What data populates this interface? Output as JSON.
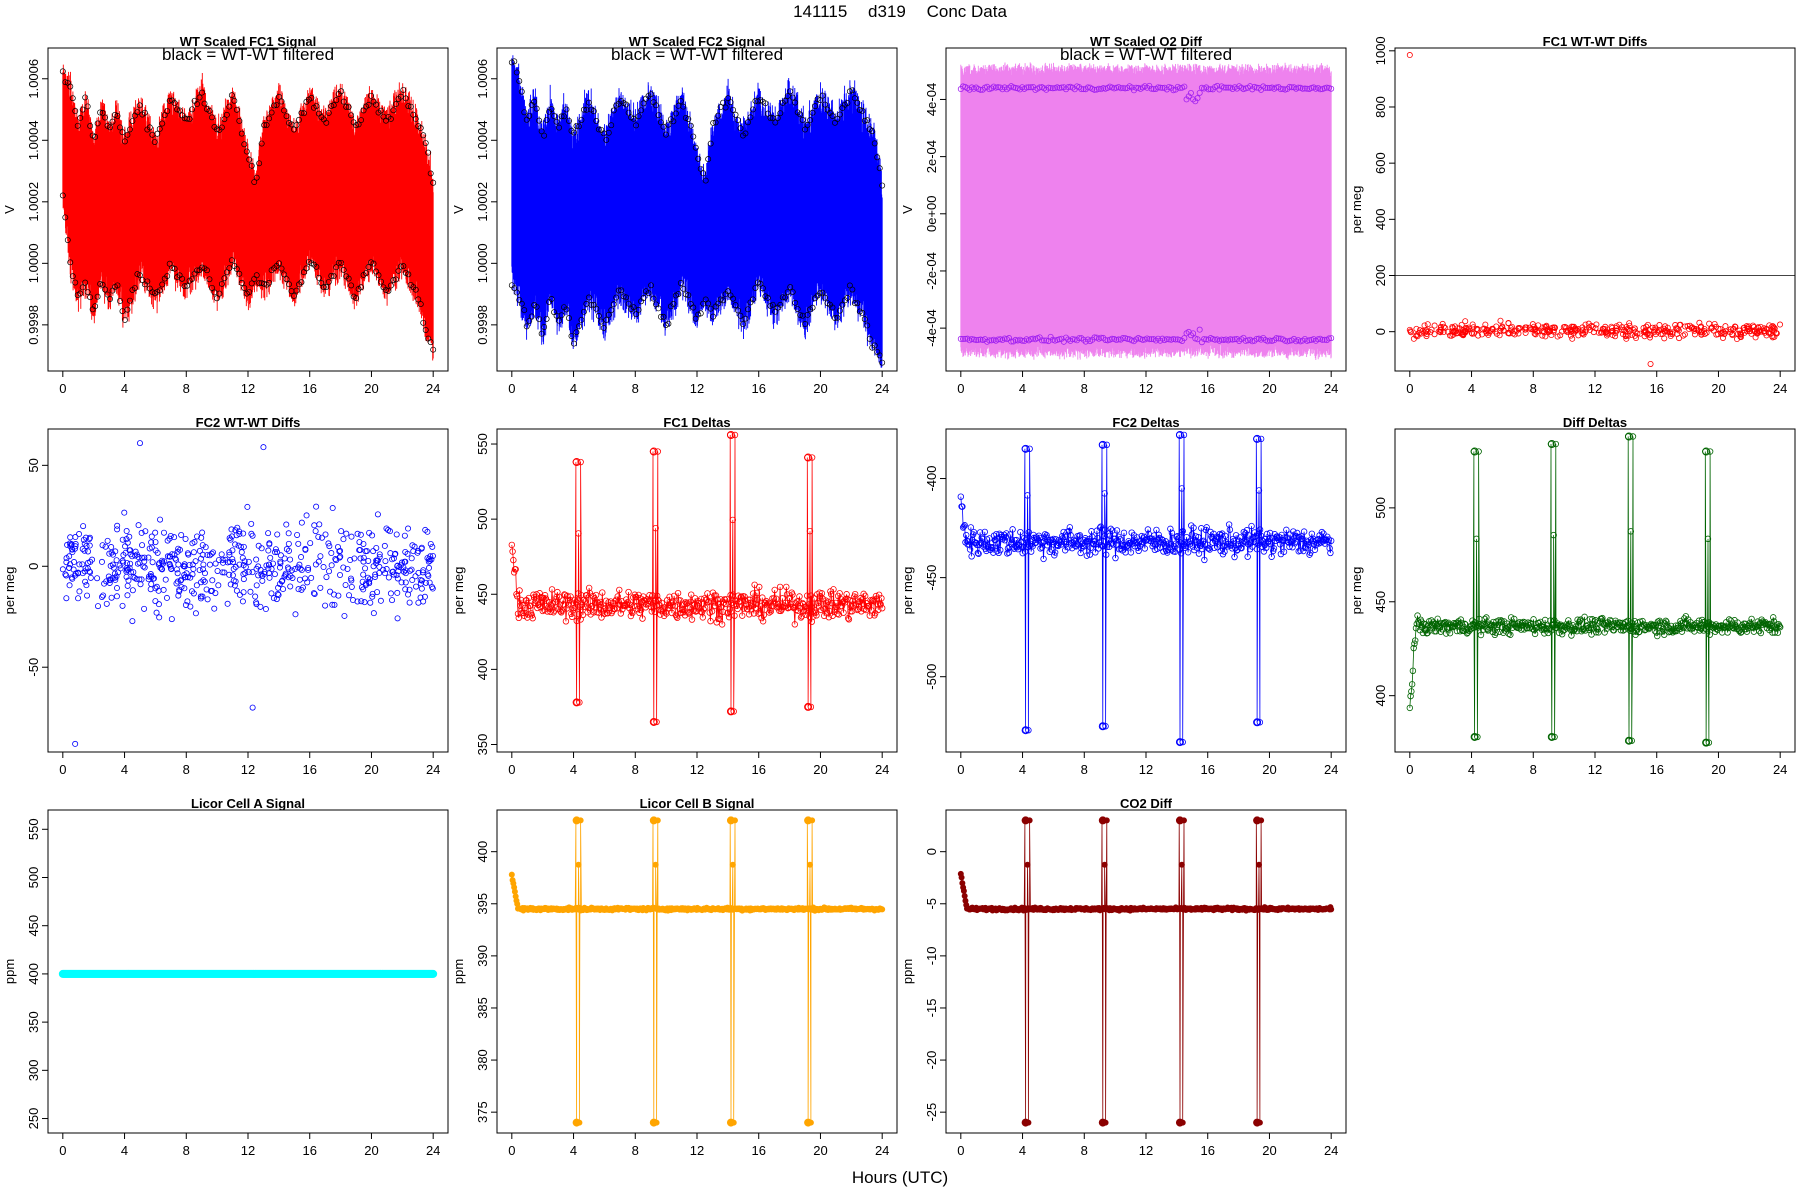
{
  "title_parts": [
    "141115",
    "d319",
    "Conc Data"
  ],
  "xlabel": "Hours (UTC)",
  "chart_data": [
    {
      "id": "fc1-signal",
      "type": "line",
      "title": "WT Scaled FC1 Signal",
      "subtitle": "black = WT-WT filtered",
      "ylabel": "V",
      "xlim": [
        0,
        24
      ],
      "ylim": [
        0.99965,
        1.0007
      ],
      "yticks": [
        0.9998,
        1.0,
        1.0002,
        1.0004,
        1.0006
      ],
      "ytick_labels": [
        "0.9998",
        "1.0000",
        "1.0002",
        "1.0004",
        "1.0006"
      ],
      "xticks": [
        0,
        4,
        8,
        12,
        16,
        20,
        24
      ],
      "color": "#ff0000",
      "overlay_color": "#000000",
      "series": [
        {
          "name": "upper envelope",
          "x": [
            0,
            0.5,
            1,
            1.5,
            2,
            2.5,
            3,
            3.5,
            4,
            5,
            6,
            7,
            8,
            9,
            10,
            11,
            12,
            12.5,
            13,
            14,
            15,
            16,
            17,
            18,
            19,
            20,
            21,
            22,
            23,
            23.5,
            24
          ],
          "values": [
            1.00066,
            1.00061,
            1.00048,
            1.00058,
            1.00043,
            1.00055,
            1.00047,
            1.00053,
            1.00044,
            1.00056,
            1.00043,
            1.00058,
            1.0005,
            1.0006,
            1.00046,
            1.00058,
            1.0004,
            1.0003,
            1.00048,
            1.00058,
            1.00046,
            1.00058,
            1.0005,
            1.0006,
            1.00048,
            1.00058,
            1.0005,
            1.0006,
            1.0005,
            1.00044,
            1.0003
          ]
        },
        {
          "name": "lower envelope",
          "x": [
            0,
            0.5,
            1,
            1.5,
            2,
            2.5,
            3,
            3.5,
            4,
            5,
            6,
            7,
            8,
            9,
            10,
            11,
            12,
            12.5,
            13,
            14,
            15,
            16,
            17,
            18,
            19,
            20,
            21,
            22,
            23,
            23.5,
            24
          ],
          "values": [
            1.00018,
            0.99995,
            0.99985,
            0.9999,
            0.9998,
            0.99992,
            0.99984,
            0.9999,
            0.99978,
            0.99993,
            0.99985,
            0.99995,
            0.99988,
            0.99996,
            0.99985,
            0.99998,
            0.99985,
            0.99992,
            0.99988,
            0.99996,
            0.99985,
            0.99998,
            0.99988,
            0.99996,
            0.99985,
            0.99997,
            0.99987,
            0.99996,
            0.99985,
            0.99975,
            0.99968
          ]
        }
      ]
    },
    {
      "id": "fc2-signal",
      "type": "line",
      "title": "WT Scaled FC2 Signal",
      "subtitle": "black = WT-WT filtered",
      "ylabel": "V",
      "xlim": [
        0,
        24
      ],
      "ylim": [
        0.99965,
        1.0007
      ],
      "yticks": [
        0.9998,
        1.0,
        1.0002,
        1.0004,
        1.0006
      ],
      "ytick_labels": [
        "0.9998",
        "1.0000",
        "1.0002",
        "1.0004",
        "1.0006"
      ],
      "xticks": [
        0,
        4,
        8,
        12,
        16,
        20,
        24
      ],
      "color": "#0000ff",
      "overlay_color": "#000000",
      "series": [
        {
          "name": "upper envelope",
          "x": [
            0,
            0.5,
            1,
            1.5,
            2,
            2.5,
            3,
            3.5,
            4,
            5,
            6,
            7,
            8,
            9,
            10,
            11,
            12,
            12.5,
            13,
            14,
            15,
            16,
            17,
            18,
            19,
            20,
            21,
            22,
            23,
            23.5,
            24
          ],
          "values": [
            1.0007,
            1.00064,
            1.0005,
            1.00058,
            1.00045,
            1.00056,
            1.00048,
            1.00054,
            1.00045,
            1.00057,
            1.00044,
            1.00058,
            1.0005,
            1.0006,
            1.00046,
            1.00058,
            1.0004,
            1.0003,
            1.00048,
            1.00058,
            1.00046,
            1.00058,
            1.0005,
            1.0006,
            1.00048,
            1.00058,
            1.0005,
            1.0006,
            1.0005,
            1.00044,
            1.0003
          ]
        },
        {
          "name": "lower envelope",
          "x": [
            0,
            0.5,
            1,
            1.5,
            2,
            2.5,
            3,
            3.5,
            4,
            5,
            6,
            7,
            8,
            9,
            10,
            11,
            12,
            12.5,
            13,
            14,
            15,
            16,
            17,
            18,
            19,
            20,
            21,
            22,
            23,
            23.5,
            24
          ],
          "values": [
            0.9999,
            0.99985,
            0.99975,
            0.99983,
            0.99972,
            0.99985,
            0.99976,
            0.99983,
            0.9997,
            0.99985,
            0.99976,
            0.99987,
            0.9998,
            0.99988,
            0.99976,
            0.9999,
            0.99978,
            0.99985,
            0.9998,
            0.99988,
            0.99976,
            0.9999,
            0.9998,
            0.99988,
            0.99976,
            0.99988,
            0.99978,
            0.99988,
            0.99976,
            0.99968,
            0.99965
          ]
        }
      ]
    },
    {
      "id": "o2-diff",
      "type": "area",
      "title": "WT Scaled O2 Diff",
      "subtitle": "black = WT-WT filtered",
      "ylabel": "V",
      "xlim": [
        0,
        24
      ],
      "ylim": [
        -0.00055,
        0.00058
      ],
      "yticks": [
        -0.0004,
        -0.0002,
        0,
        0.0002,
        0.0004
      ],
      "ytick_labels": [
        "-4e-04",
        "-2e-04",
        "0e+00",
        "2e-04",
        "4e-04"
      ],
      "xticks": [
        0,
        4,
        8,
        12,
        16,
        20,
        24
      ],
      "color": "#ee82ee",
      "overlay_color": "#a020f0",
      "band": {
        "top": 0.00052,
        "bottom": -0.0005
      },
      "upper_level": 0.00044,
      "lower_level": -0.00044
    },
    {
      "id": "fc1-wtwt",
      "type": "scatter",
      "title": "FC1 WT-WT Diffs",
      "ylabel": "per meg",
      "xlim": [
        0,
        24
      ],
      "ylim": [
        -140,
        1010
      ],
      "yticks": [
        0,
        200,
        400,
        600,
        800,
        1000
      ],
      "ytick_labels": [
        "0",
        "200",
        "400",
        "600",
        "800",
        "1000"
      ],
      "xticks": [
        0,
        4,
        8,
        12,
        16,
        20,
        24
      ],
      "color": "#ff0000",
      "hline": 200,
      "outliers": [
        {
          "x": 0,
          "y": 985
        },
        {
          "x": 15.6,
          "y": -115
        }
      ],
      "typical_range": [
        -50,
        60
      ]
    },
    {
      "id": "fc2-wtwt",
      "type": "scatter",
      "title": "FC2 WT-WT Diffs",
      "ylabel": "per meg",
      "xlim": [
        0,
        24
      ],
      "ylim": [
        -92,
        68
      ],
      "yticks": [
        -50,
        0,
        50
      ],
      "ytick_labels": [
        "-50",
        "0",
        "50"
      ],
      "xticks": [
        0,
        4,
        8,
        12,
        16,
        20,
        24
      ],
      "color": "#0000ff",
      "outliers": [
        {
          "x": 0.8,
          "y": -88
        },
        {
          "x": 12.3,
          "y": -70
        },
        {
          "x": 5,
          "y": 61
        },
        {
          "x": 13,
          "y": 59
        }
      ],
      "typical_range": [
        -45,
        45
      ]
    },
    {
      "id": "fc1-deltas",
      "type": "line",
      "title": "FC1 Deltas",
      "ylabel": "per meg",
      "xlim": [
        0,
        24
      ],
      "ylim": [
        345,
        560
      ],
      "yticks": [
        350,
        400,
        450,
        500,
        550
      ],
      "ytick_labels": [
        "350",
        "400",
        "450",
        "500",
        "550"
      ],
      "xticks": [
        0,
        4,
        8,
        12,
        16,
        20,
        24
      ],
      "color": "#ff0000",
      "baseline": 443,
      "noise": 14,
      "spikes": [
        {
          "x": 4.2,
          "high": 538,
          "low": 378
        },
        {
          "x": 9.2,
          "high": 545,
          "low": 365
        },
        {
          "x": 14.2,
          "high": 556,
          "low": 372
        },
        {
          "x": 19.2,
          "high": 541,
          "low": 375
        }
      ]
    },
    {
      "id": "fc2-deltas",
      "type": "line",
      "title": "FC2 Deltas",
      "ylabel": "per meg",
      "xlim": [
        0,
        24
      ],
      "ylim": [
        -538,
        -375
      ],
      "yticks": [
        -500,
        -450,
        -400
      ],
      "ytick_labels": [
        "-500",
        "-450",
        "-400"
      ],
      "xticks": [
        0,
        4,
        8,
        12,
        16,
        20,
        24
      ],
      "color": "#0000ff",
      "baseline": -432,
      "noise": 10,
      "spikes": [
        {
          "x": 4.2,
          "high": -385,
          "low": -527
        },
        {
          "x": 9.2,
          "high": -383,
          "low": -525
        },
        {
          "x": 14.2,
          "high": -378,
          "low": -533
        },
        {
          "x": 19.2,
          "high": -380,
          "low": -523
        }
      ]
    },
    {
      "id": "diff-deltas",
      "type": "line",
      "title": "Diff Deltas",
      "ylabel": "per meg",
      "xlim": [
        0,
        24
      ],
      "ylim": [
        370,
        542
      ],
      "yticks": [
        400,
        450,
        500
      ],
      "ytick_labels": [
        "400",
        "450",
        "500"
      ],
      "xticks": [
        0,
        4,
        8,
        12,
        16,
        20,
        24
      ],
      "color": "#006400",
      "baseline": 437,
      "noise": 6,
      "spikes": [
        {
          "x": 4.2,
          "high": 530,
          "low": 378
        },
        {
          "x": 9.2,
          "high": 534,
          "low": 378
        },
        {
          "x": 14.2,
          "high": 538,
          "low": 376
        },
        {
          "x": 19.2,
          "high": 530,
          "low": 375
        }
      ]
    },
    {
      "id": "licor-a",
      "type": "line",
      "title": "Licor Cell A Signal",
      "ylabel": "ppm",
      "xlim": [
        0,
        24
      ],
      "ylim": [
        235,
        570
      ],
      "yticks": [
        250,
        300,
        350,
        400,
        450,
        500,
        550
      ],
      "ytick_labels": [
        "250",
        "300",
        "350",
        "400",
        "450",
        "500",
        "550"
      ],
      "xticks": [
        0,
        4,
        8,
        12,
        16,
        20,
        24
      ],
      "color": "#00ffff",
      "constant": 400
    },
    {
      "id": "licor-b",
      "type": "line",
      "title": "Licor Cell B Signal",
      "ylabel": "ppm",
      "xlim": [
        0,
        24
      ],
      "ylim": [
        373,
        404
      ],
      "yticks": [
        375,
        380,
        385,
        390,
        395,
        400
      ],
      "ytick_labels": [
        "375",
        "380",
        "385",
        "390",
        "395",
        "400"
      ],
      "xticks": [
        0,
        4,
        8,
        12,
        16,
        20,
        24
      ],
      "color": "#ffa500",
      "baseline": 394.5,
      "spikes": [
        {
          "x": 4.2,
          "high": 403,
          "low": 374
        },
        {
          "x": 9.2,
          "high": 403,
          "low": 374
        },
        {
          "x": 14.2,
          "high": 403,
          "low": 374
        },
        {
          "x": 19.2,
          "high": 403,
          "low": 374
        }
      ]
    },
    {
      "id": "co2-diff",
      "type": "line",
      "title": "CO2 Diff",
      "ylabel": "ppm",
      "xlim": [
        0,
        24
      ],
      "ylim": [
        -27,
        4
      ],
      "yticks": [
        -25,
        -20,
        -15,
        -10,
        -5,
        0
      ],
      "ytick_labels": [
        "-25",
        "-20",
        "-15",
        "-10",
        "-5",
        "0"
      ],
      "xticks": [
        0,
        4,
        8,
        12,
        16,
        20,
        24
      ],
      "color": "#8b0000",
      "baseline": -5.5,
      "spikes": [
        {
          "x": 4.2,
          "high": 3,
          "low": -26
        },
        {
          "x": 9.2,
          "high": 3,
          "low": -26
        },
        {
          "x": 14.2,
          "high": 3,
          "low": -26
        },
        {
          "x": 19.2,
          "high": 3,
          "low": -26
        }
      ]
    }
  ]
}
